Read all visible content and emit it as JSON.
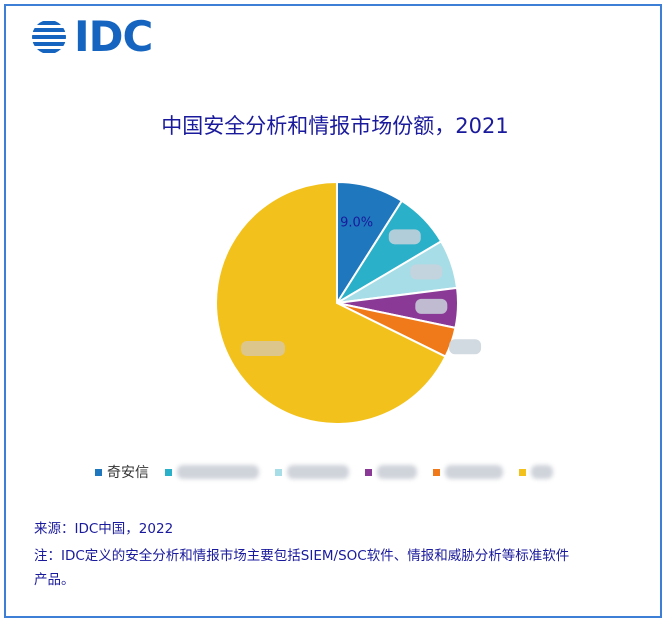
{
  "logo": {
    "text": "IDC"
  },
  "chart_data": {
    "type": "pie",
    "title": "中国安全分析和情报市场份额，2021",
    "slices": [
      {
        "name": "奇安信",
        "value": 9.0,
        "label": "9.0%",
        "color": "#1f77bd"
      },
      {
        "name": "",
        "value": 7.5,
        "label": "",
        "color": "#2ab0c8"
      },
      {
        "name": "",
        "value": 6.5,
        "label": "",
        "color": "#a6dde6"
      },
      {
        "name": "",
        "value": 5.3,
        "label": "",
        "color": "#8a3a96"
      },
      {
        "name": "",
        "value": 4.0,
        "label": "",
        "color": "#f07a1a"
      },
      {
        "name": "",
        "value": 67.7,
        "label": "",
        "color": "#f2c11b"
      }
    ],
    "legend_position": "bottom"
  },
  "footer": {
    "source": "来源：IDC中国，2022",
    "note_line1": "注：IDC定义的安全分析和情报市场主要包括SIEM/SOC软件、情报和威胁分析等标准软件",
    "note_line2": "产品。"
  }
}
